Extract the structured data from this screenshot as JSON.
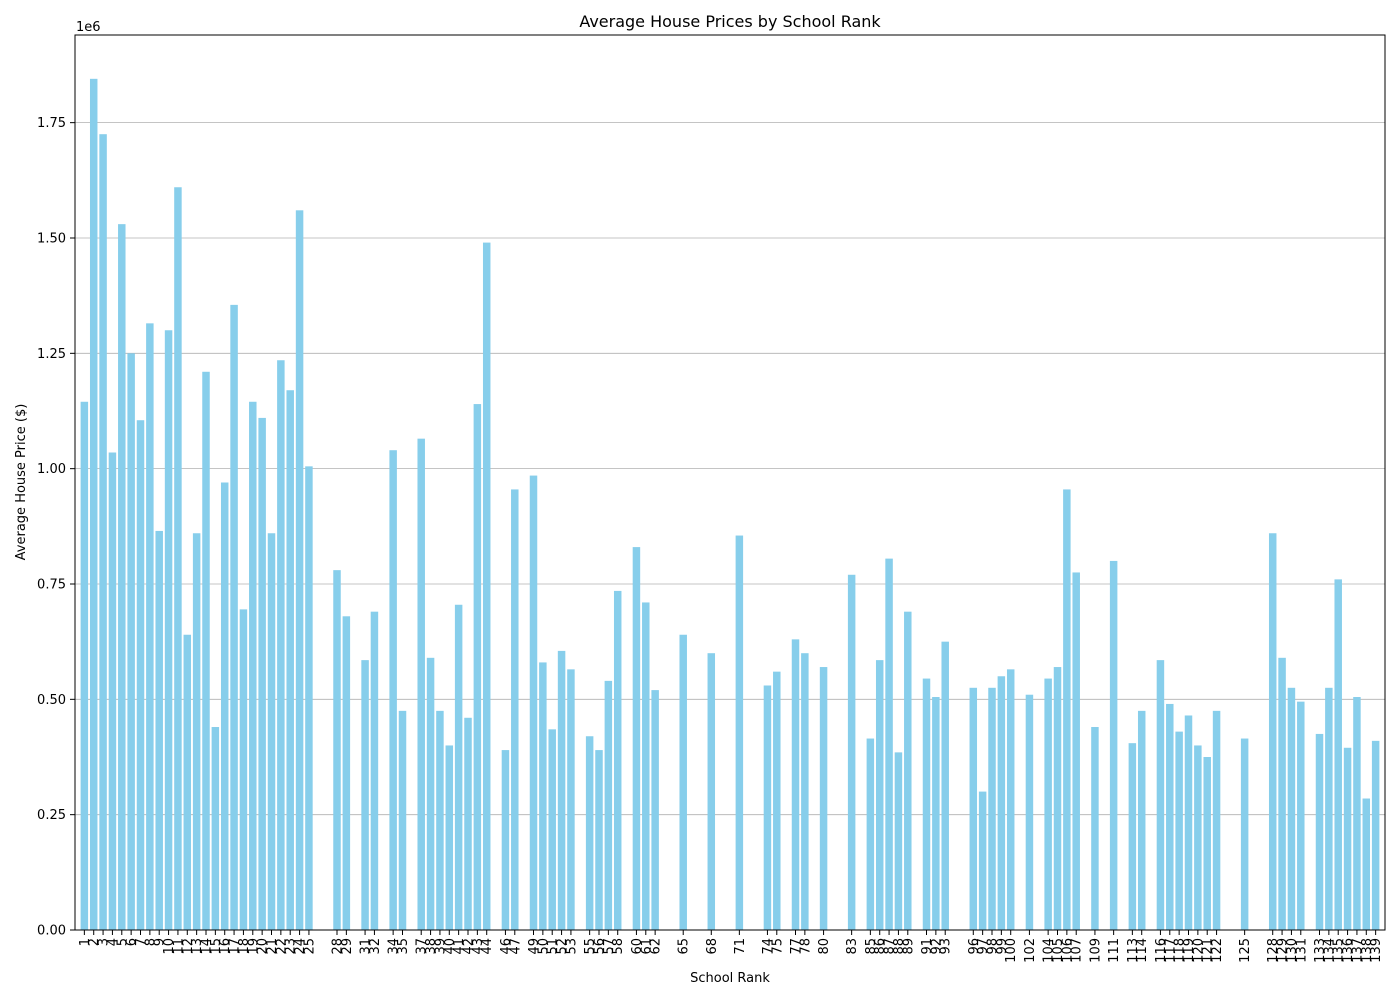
{
  "chart_data": {
    "type": "bar",
    "title": "Average House Prices by School Rank",
    "xlabel": "School Rank",
    "ylabel": "Average House Price ($)",
    "y_offset_label": "1e6",
    "ylim": [
      0,
      1940000
    ],
    "yticks": [
      0,
      250000,
      500000,
      750000,
      1000000,
      1250000,
      1500000,
      1750000
    ],
    "ytick_labels": [
      "0.00",
      "0.25",
      "0.50",
      "0.75",
      "1.00",
      "1.25",
      "1.50",
      "1.75"
    ],
    "grid": "y",
    "bar_color": "#87ceeb",
    "categories": [
      1,
      2,
      3,
      4,
      5,
      6,
      7,
      8,
      9,
      10,
      11,
      12,
      13,
      14,
      15,
      16,
      17,
      18,
      19,
      20,
      21,
      22,
      23,
      24,
      25,
      28,
      29,
      31,
      32,
      34,
      35,
      37,
      38,
      39,
      40,
      41,
      42,
      43,
      44,
      46,
      47,
      49,
      50,
      51,
      52,
      53,
      55,
      56,
      57,
      58,
      60,
      61,
      62,
      65,
      68,
      71,
      74,
      75,
      77,
      78,
      80,
      83,
      85,
      86,
      87,
      88,
      89,
      91,
      92,
      93,
      96,
      97,
      98,
      99,
      100,
      102,
      104,
      105,
      106,
      107,
      109,
      111,
      113,
      114,
      116,
      117,
      118,
      119,
      120,
      121,
      122,
      125,
      128,
      129,
      130,
      131,
      133,
      134,
      135,
      136,
      137,
      138,
      139
    ],
    "values": [
      1145000,
      1845000,
      1725000,
      1035000,
      1530000,
      1250000,
      1105000,
      1315000,
      865000,
      1300000,
      1610000,
      640000,
      860000,
      1210000,
      440000,
      970000,
      1355000,
      695000,
      1145000,
      1110000,
      860000,
      1235000,
      1170000,
      1560000,
      1005000,
      780000,
      680000,
      585000,
      690000,
      1040000,
      475000,
      1065000,
      590000,
      475000,
      400000,
      705000,
      460000,
      1140000,
      1490000,
      390000,
      955000,
      985000,
      580000,
      435000,
      605000,
      565000,
      420000,
      390000,
      540000,
      735000,
      830000,
      710000,
      520000,
      640000,
      600000,
      855000,
      530000,
      560000,
      630000,
      600000,
      570000,
      770000,
      415000,
      585000,
      805000,
      385000,
      690000,
      545000,
      505000,
      625000,
      525000,
      300000,
      525000,
      550000,
      565000,
      510000,
      545000,
      570000,
      955000,
      775000,
      440000,
      800000,
      405000,
      475000,
      585000,
      490000,
      430000,
      465000,
      400000,
      375000,
      475000,
      415000,
      860000,
      590000,
      525000,
      495000,
      425000,
      525000,
      760000,
      395000,
      505000,
      285000,
      410000
    ]
  }
}
